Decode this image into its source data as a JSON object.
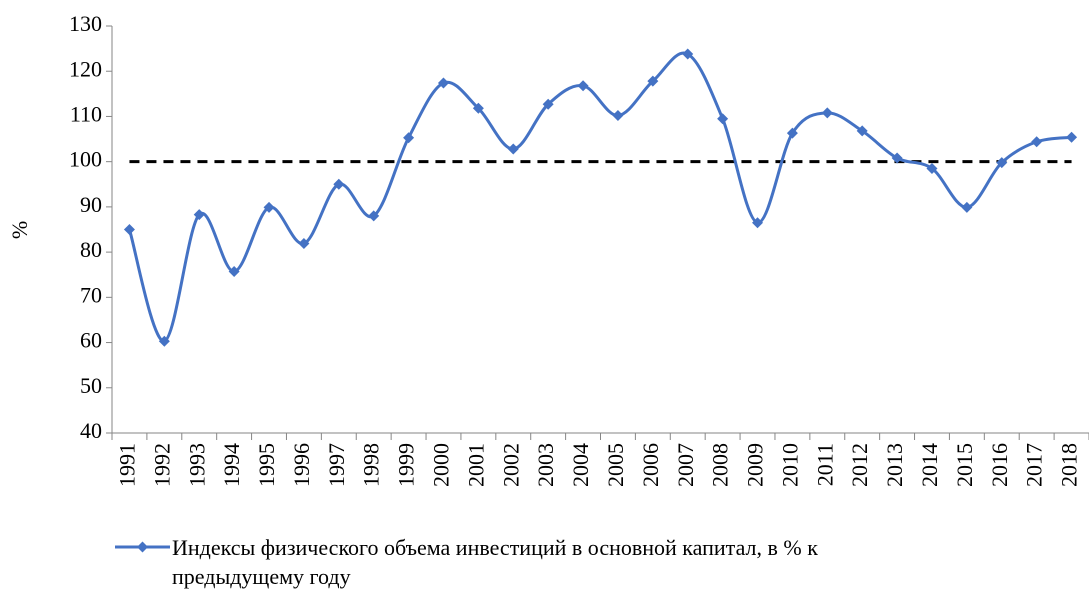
{
  "chart_data": {
    "type": "line",
    "y_label": "%",
    "categories": [
      "1991",
      "1992",
      "1993",
      "1994",
      "1995",
      "1996",
      "1997",
      "1998",
      "1999",
      "2000",
      "2001",
      "2002",
      "2003",
      "2004",
      "2005",
      "2006",
      "2007",
      "2008",
      "2009",
      "2010",
      "2011",
      "2012",
      "2013",
      "2014",
      "2015",
      "2016",
      "2017",
      "2018"
    ],
    "series": [
      {
        "name": "Индексы физического объема инвестиций в основной капитал, в % к предыдущему году",
        "color": "#4472c4",
        "values": [
          85,
          60.3,
          88.3,
          75.7,
          89.9,
          81.9,
          95,
          88,
          105.3,
          117.4,
          111.8,
          102.8,
          112.7,
          116.8,
          110.2,
          117.8,
          123.8,
          109.5,
          86.5,
          106.3,
          110.8,
          106.8,
          100.8,
          98.5,
          89.9,
          99.8,
          104.4,
          105.4
        ]
      }
    ],
    "reference_line": 100,
    "ylim": [
      40,
      130
    ],
    "yticks": [
      40,
      50,
      60,
      70,
      80,
      90,
      100,
      110,
      120,
      130
    ],
    "smooth": true,
    "grid": false
  }
}
